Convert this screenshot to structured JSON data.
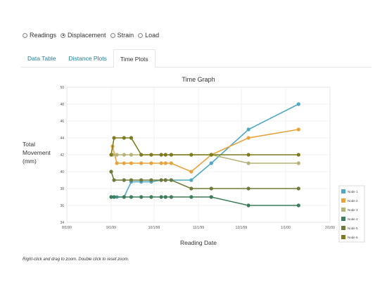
{
  "radio_options": [
    {
      "label": "Readings",
      "checked": false
    },
    {
      "label": "Displacement",
      "checked": true
    },
    {
      "label": "Strain",
      "checked": false
    },
    {
      "label": "Load",
      "checked": false
    }
  ],
  "tabs": [
    {
      "label": "Data Table",
      "active": false
    },
    {
      "label": "Distance Plots",
      "active": false
    },
    {
      "label": "Time Plots",
      "active": true
    }
  ],
  "hint": "Right-click and drag to zoom. Double click to reset zoom.",
  "chart_data": {
    "type": "line",
    "title": "Time Graph",
    "xlabel": "Reading Date",
    "ylabel": [
      "Total",
      "Movement",
      "(mm)"
    ],
    "x_ticks": [
      "8/1/99",
      "9/1/99",
      "10/1/99",
      "11/1/99",
      "12/1/99",
      "1/1/00",
      "2/1/00"
    ],
    "y_ticks": [
      34,
      36,
      38,
      40,
      42,
      44,
      46,
      48,
      50
    ],
    "ylim": [
      34,
      50
    ],
    "xlim": [
      "1999-08-01",
      "2000-02-01"
    ],
    "grid": true,
    "legend_position": "right",
    "series": [
      {
        "name": "Node 1",
        "color": "#4fa8c4",
        "points": [
          [
            "1999-09-01",
            37
          ],
          [
            "1999-09-05",
            37
          ],
          [
            "1999-09-10",
            37
          ],
          [
            "1999-09-15",
            38.8
          ],
          [
            "1999-09-22",
            38.8
          ],
          [
            "1999-09-29",
            38.8
          ],
          [
            "1999-10-06",
            39
          ],
          [
            "1999-10-09",
            39
          ],
          [
            "1999-10-13",
            39
          ],
          [
            "1999-10-27",
            39
          ],
          [
            "1999-11-10",
            41
          ],
          [
            "1999-12-06",
            45
          ],
          [
            "2000-01-10",
            48
          ]
        ]
      },
      {
        "name": "Node 2",
        "color": "#e8a33c",
        "points": [
          [
            "1999-09-02",
            43
          ],
          [
            "1999-09-05",
            41
          ],
          [
            "1999-09-10",
            41
          ],
          [
            "1999-09-15",
            41
          ],
          [
            "1999-09-22",
            41
          ],
          [
            "1999-09-29",
            41
          ],
          [
            "1999-10-06",
            41
          ],
          [
            "1999-10-09",
            41
          ],
          [
            "1999-10-13",
            41
          ],
          [
            "1999-10-27",
            40
          ],
          [
            "1999-11-10",
            42
          ],
          [
            "1999-12-06",
            44
          ],
          [
            "2000-01-10",
            45
          ]
        ]
      },
      {
        "name": "Node 3",
        "color": "#b5b27a",
        "points": [
          [
            "1999-09-02",
            42
          ],
          [
            "1999-09-05",
            42
          ],
          [
            "1999-09-10",
            42
          ],
          [
            "1999-09-15",
            42
          ],
          [
            "1999-09-22",
            42
          ],
          [
            "1999-09-29",
            42
          ],
          [
            "1999-10-06",
            42
          ],
          [
            "1999-10-09",
            42
          ],
          [
            "1999-10-13",
            42
          ],
          [
            "1999-10-27",
            42
          ],
          [
            "1999-11-10",
            42
          ],
          [
            "1999-12-06",
            41
          ],
          [
            "2000-01-10",
            41
          ]
        ]
      },
      {
        "name": "Node 4",
        "color": "#3e7d5c",
        "points": [
          [
            "1999-09-01",
            37
          ],
          [
            "1999-09-03",
            37
          ],
          [
            "1999-09-10",
            37
          ],
          [
            "1999-09-15",
            37
          ],
          [
            "1999-09-22",
            37
          ],
          [
            "1999-09-29",
            37
          ],
          [
            "1999-10-06",
            37
          ],
          [
            "1999-10-09",
            37
          ],
          [
            "1999-10-13",
            37
          ],
          [
            "1999-10-27",
            37
          ],
          [
            "1999-11-10",
            37
          ],
          [
            "1999-12-06",
            36
          ],
          [
            "2000-01-10",
            36
          ]
        ]
      },
      {
        "name": "Node 5",
        "color": "#6f7a3a",
        "points": [
          [
            "1999-09-01",
            40
          ],
          [
            "1999-09-03",
            39
          ],
          [
            "1999-09-10",
            39
          ],
          [
            "1999-09-15",
            39
          ],
          [
            "1999-09-22",
            39
          ],
          [
            "1999-09-29",
            39
          ],
          [
            "1999-10-06",
            39
          ],
          [
            "1999-10-09",
            39
          ],
          [
            "1999-10-13",
            39
          ],
          [
            "1999-10-27",
            38
          ],
          [
            "1999-11-10",
            38
          ],
          [
            "1999-12-06",
            38
          ],
          [
            "2000-01-10",
            38
          ]
        ]
      },
      {
        "name": "Node 6",
        "color": "#7e7a1e",
        "points": [
          [
            "1999-09-01",
            42
          ],
          [
            "1999-09-03",
            44
          ],
          [
            "1999-09-10",
            44
          ],
          [
            "1999-09-15",
            44
          ],
          [
            "1999-09-22",
            42
          ],
          [
            "1999-09-29",
            42
          ],
          [
            "1999-10-06",
            42
          ],
          [
            "1999-10-09",
            42
          ],
          [
            "1999-10-13",
            42
          ],
          [
            "1999-10-27",
            42
          ],
          [
            "1999-11-10",
            42
          ],
          [
            "1999-12-06",
            42
          ],
          [
            "2000-01-10",
            42
          ]
        ]
      }
    ]
  }
}
